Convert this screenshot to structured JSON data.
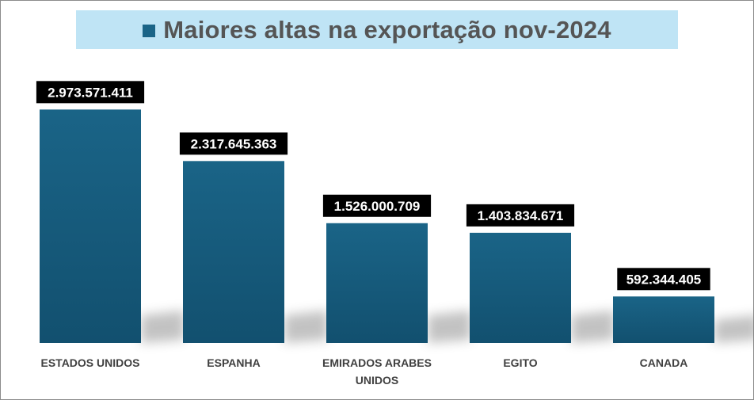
{
  "legend": {
    "label": "Maiores altas na exportação nov-2024"
  },
  "colors": {
    "bar_top": "#1a6487",
    "bar_bottom": "#12506f",
    "label_bg": "#000000",
    "legend_bg": "#bfe4f5"
  },
  "chart_data": {
    "type": "bar",
    "categories": [
      "ESTADOS UNIDOS",
      "ESPANHA",
      "EMIRADOS ARABES UNIDOS",
      "EGITO",
      "CANADA"
    ],
    "category_lines": [
      [
        "ESTADOS UNIDOS"
      ],
      [
        "ESPANHA"
      ],
      [
        "EMIRADOS ARABES",
        "UNIDOS"
      ],
      [
        "EGITO"
      ],
      [
        "CANADA"
      ]
    ],
    "values": [
      2973571411,
      2317645363,
      1526000709,
      1403834671,
      592344405
    ],
    "value_labels": [
      "2.973.571.411",
      "2.317.645.363",
      "1.526.000.709",
      "1.403.834.671",
      "592.344.405"
    ],
    "series": [
      {
        "name": "Maiores altas na exportação nov-2024"
      }
    ],
    "ylim": [
      0,
      3000000000
    ],
    "grid": false,
    "legend_position": "top"
  }
}
